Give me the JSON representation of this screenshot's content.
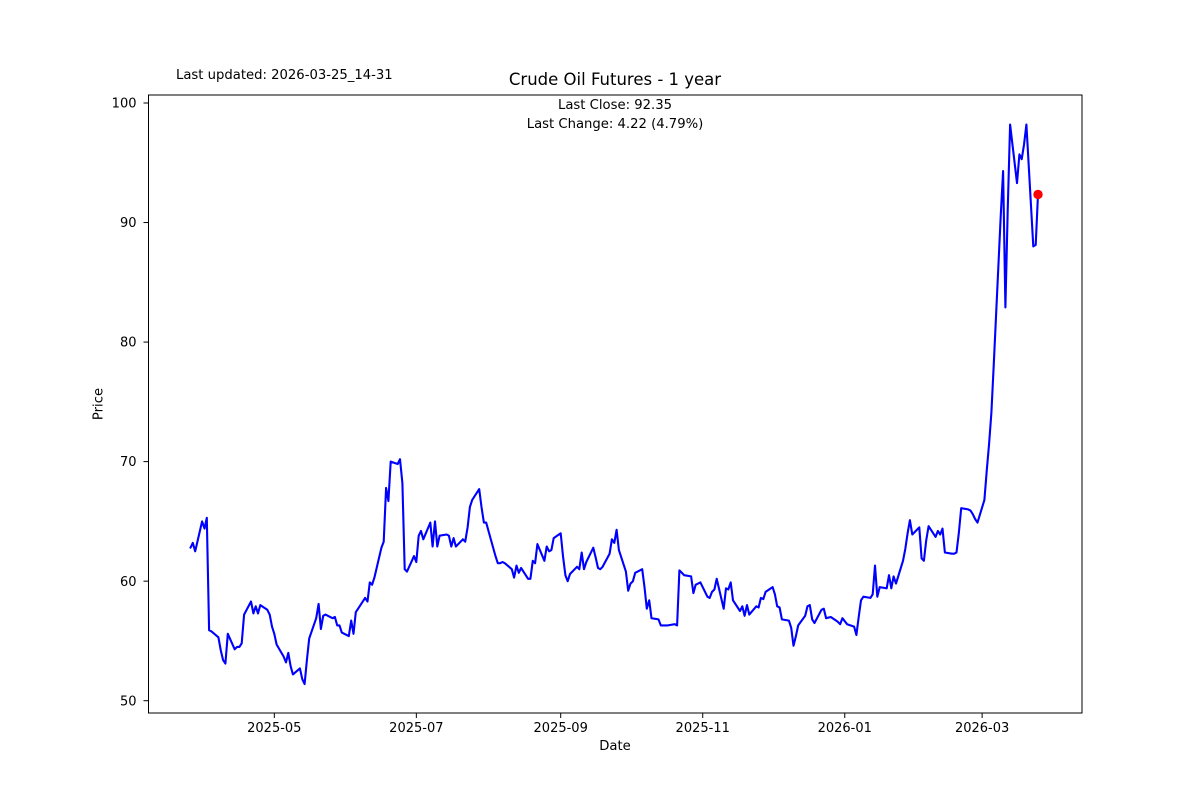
{
  "figure": {
    "last_updated_text": "Last updated: 2026-03-25_14-31",
    "annotation_line1": "Last Close: 92.35",
    "annotation_line2": "Last Change: 4.22 (4.79%)",
    "stats": {
      "last_close": 92.35,
      "last_change": 4.22,
      "last_change_pct": 4.79
    },
    "colors": {
      "line": "#0000ff",
      "marker": "#ff0000",
      "axes": "#000000",
      "background": "#ffffff"
    }
  },
  "chart_data": {
    "type": "line",
    "title": "Crude Oil Futures - 1 year",
    "xlabel": "Date",
    "ylabel": "Price",
    "grid": false,
    "legend_position": "none",
    "x_range": [
      "2025-03-26",
      "2026-03-25"
    ],
    "y_axis": {
      "ticks": [
        50,
        60,
        70,
        80,
        90,
        100
      ],
      "range": [
        48.9,
        100.7
      ]
    },
    "x_axis": {
      "ticks": [
        {
          "label": "2025-05",
          "date": "2025-05-01"
        },
        {
          "label": "2025-07",
          "date": "2025-07-01"
        },
        {
          "label": "2025-09",
          "date": "2025-09-01"
        },
        {
          "label": "2025-11",
          "date": "2025-11-01"
        },
        {
          "label": "2026-01",
          "date": "2026-01-01"
        },
        {
          "label": "2026-03",
          "date": "2026-03-01"
        }
      ]
    },
    "end_marker": {
      "date": "2026-03-25",
      "value": 92.35,
      "color": "#ff0000",
      "shape": "circle"
    },
    "series": [
      {
        "name": "price",
        "color": "#0000ff",
        "line_width": 2,
        "dates": [
          "2025-03-26",
          "2025-03-27",
          "2025-03-28",
          "2025-03-31",
          "2025-04-01",
          "2025-04-02",
          "2025-04-03",
          "2025-04-04",
          "2025-04-07",
          "2025-04-08",
          "2025-04-09",
          "2025-04-10",
          "2025-04-11",
          "2025-04-14",
          "2025-04-15",
          "2025-04-16",
          "2025-04-17",
          "2025-04-18",
          "2025-04-21",
          "2025-04-22",
          "2025-04-23",
          "2025-04-24",
          "2025-04-25",
          "2025-04-28",
          "2025-04-29",
          "2025-04-30",
          "2025-05-01",
          "2025-05-02",
          "2025-05-05",
          "2025-05-06",
          "2025-05-07",
          "2025-05-08",
          "2025-05-09",
          "2025-05-12",
          "2025-05-13",
          "2025-05-14",
          "2025-05-15",
          "2025-05-16",
          "2025-05-19",
          "2025-05-20",
          "2025-05-21",
          "2025-05-22",
          "2025-05-23",
          "2025-05-26",
          "2025-05-27",
          "2025-05-28",
          "2025-05-29",
          "2025-05-30",
          "2025-06-02",
          "2025-06-03",
          "2025-06-04",
          "2025-06-05",
          "2025-06-06",
          "2025-06-09",
          "2025-06-10",
          "2025-06-11",
          "2025-06-12",
          "2025-06-13",
          "2025-06-16",
          "2025-06-17",
          "2025-06-18",
          "2025-06-19",
          "2025-06-20",
          "2025-06-23",
          "2025-06-24",
          "2025-06-25",
          "2025-06-26",
          "2025-06-27",
          "2025-06-30",
          "2025-07-01",
          "2025-07-02",
          "2025-07-03",
          "2025-07-04",
          "2025-07-07",
          "2025-07-08",
          "2025-07-09",
          "2025-07-10",
          "2025-07-11",
          "2025-07-14",
          "2025-07-15",
          "2025-07-16",
          "2025-07-17",
          "2025-07-18",
          "2025-07-21",
          "2025-07-22",
          "2025-07-23",
          "2025-07-24",
          "2025-07-25",
          "2025-07-28",
          "2025-07-29",
          "2025-07-30",
          "2025-07-31",
          "2025-08-01",
          "2025-08-04",
          "2025-08-05",
          "2025-08-06",
          "2025-08-07",
          "2025-08-08",
          "2025-08-11",
          "2025-08-12",
          "2025-08-13",
          "2025-08-14",
          "2025-08-15",
          "2025-08-18",
          "2025-08-19",
          "2025-08-20",
          "2025-08-21",
          "2025-08-22",
          "2025-08-25",
          "2025-08-26",
          "2025-08-27",
          "2025-08-28",
          "2025-08-29",
          "2025-09-01",
          "2025-09-02",
          "2025-09-03",
          "2025-09-04",
          "2025-09-05",
          "2025-09-08",
          "2025-09-09",
          "2025-09-10",
          "2025-09-11",
          "2025-09-12",
          "2025-09-15",
          "2025-09-16",
          "2025-09-17",
          "2025-09-18",
          "2025-09-19",
          "2025-09-22",
          "2025-09-23",
          "2025-09-24",
          "2025-09-25",
          "2025-09-26",
          "2025-09-29",
          "2025-09-30",
          "2025-10-01",
          "2025-10-02",
          "2025-10-03",
          "2025-10-06",
          "2025-10-07",
          "2025-10-08",
          "2025-10-09",
          "2025-10-10",
          "2025-10-13",
          "2025-10-14",
          "2025-10-15",
          "2025-10-16",
          "2025-10-17",
          "2025-10-20",
          "2025-10-21",
          "2025-10-22",
          "2025-10-23",
          "2025-10-24",
          "2025-10-27",
          "2025-10-28",
          "2025-10-29",
          "2025-10-30",
          "2025-10-31",
          "2025-11-03",
          "2025-11-04",
          "2025-11-05",
          "2025-11-06",
          "2025-11-07",
          "2025-11-10",
          "2025-11-11",
          "2025-11-12",
          "2025-11-13",
          "2025-11-14",
          "2025-11-17",
          "2025-11-18",
          "2025-11-19",
          "2025-11-20",
          "2025-11-21",
          "2025-11-24",
          "2025-11-25",
          "2025-11-26",
          "2025-11-27",
          "2025-11-28",
          "2025-12-01",
          "2025-12-02",
          "2025-12-03",
          "2025-12-04",
          "2025-12-05",
          "2025-12-08",
          "2025-12-09",
          "2025-12-10",
          "2025-12-11",
          "2025-12-12",
          "2025-12-15",
          "2025-12-16",
          "2025-12-17",
          "2025-12-18",
          "2025-12-19",
          "2025-12-22",
          "2025-12-23",
          "2025-12-24",
          "2025-12-26",
          "2025-12-29",
          "2025-12-30",
          "2025-12-31",
          "2026-01-02",
          "2026-01-05",
          "2026-01-06",
          "2026-01-07",
          "2026-01-08",
          "2026-01-09",
          "2026-01-12",
          "2026-01-13",
          "2026-01-14",
          "2026-01-15",
          "2026-01-16",
          "2026-01-19",
          "2026-01-20",
          "2026-01-21",
          "2026-01-22",
          "2026-01-23",
          "2026-01-26",
          "2026-01-27",
          "2026-01-28",
          "2026-01-29",
          "2026-01-30",
          "2026-02-02",
          "2026-02-03",
          "2026-02-04",
          "2026-02-05",
          "2026-02-06",
          "2026-02-09",
          "2026-02-10",
          "2026-02-11",
          "2026-02-12",
          "2026-02-13",
          "2026-02-16",
          "2026-02-17",
          "2026-02-18",
          "2026-02-19",
          "2026-02-20",
          "2026-02-23",
          "2026-02-24",
          "2026-02-25",
          "2026-02-26",
          "2026-02-27",
          "2026-03-02",
          "2026-03-03",
          "2026-03-04",
          "2026-03-05",
          "2026-03-06",
          "2026-03-09",
          "2026-03-10",
          "2026-03-11",
          "2026-03-12",
          "2026-03-13",
          "2026-03-16",
          "2026-03-17",
          "2026-03-18",
          "2026-03-19",
          "2026-03-20",
          "2026-03-23",
          "2026-03-24",
          "2026-03-25"
        ],
        "values": [
          62.8,
          63.2,
          62.5,
          65.0,
          64.4,
          65.3,
          55.9,
          55.8,
          55.3,
          54.2,
          53.4,
          53.1,
          55.6,
          54.3,
          54.5,
          54.5,
          54.8,
          57.2,
          58.3,
          57.3,
          57.9,
          57.3,
          58.0,
          57.6,
          57.2,
          56.2,
          55.6,
          54.7,
          53.7,
          53.2,
          54.0,
          52.9,
          52.2,
          52.7,
          51.8,
          51.4,
          53.4,
          55.2,
          56.9,
          58.1,
          56.0,
          57.1,
          57.2,
          56.9,
          57.0,
          56.3,
          56.3,
          55.7,
          55.4,
          56.7,
          55.6,
          57.4,
          57.7,
          58.6,
          58.3,
          59.9,
          59.7,
          60.3,
          62.8,
          63.3,
          67.8,
          66.7,
          70.0,
          69.8,
          70.2,
          68.2,
          61.0,
          60.8,
          62.1,
          61.6,
          63.8,
          64.2,
          63.5,
          64.9,
          62.9,
          65.0,
          62.9,
          63.8,
          63.9,
          63.8,
          62.9,
          63.6,
          62.9,
          63.5,
          63.3,
          64.5,
          66.2,
          66.8,
          67.7,
          66.2,
          64.9,
          64.9,
          64.2,
          62.1,
          61.5,
          61.5,
          61.6,
          61.5,
          61.0,
          60.3,
          61.3,
          60.7,
          61.1,
          60.2,
          60.2,
          61.7,
          61.5,
          63.1,
          61.7,
          62.9,
          62.5,
          62.6,
          63.6,
          64.0,
          62.1,
          60.5,
          60.0,
          60.6,
          61.2,
          61.0,
          62.4,
          61.0,
          61.6,
          62.8,
          62.0,
          61.1,
          61.0,
          61.2,
          62.3,
          63.5,
          63.2,
          64.3,
          62.6,
          60.8,
          59.2,
          59.8,
          60.0,
          60.7,
          61.0,
          59.5,
          57.7,
          58.4,
          56.9,
          56.8,
          56.3,
          56.3,
          56.3,
          56.3,
          56.4,
          56.3,
          60.9,
          60.7,
          60.5,
          60.4,
          59.0,
          59.7,
          59.8,
          59.9,
          58.7,
          58.6,
          59.1,
          59.3,
          60.2,
          57.7,
          59.4,
          59.3,
          59.9,
          58.4,
          57.5,
          57.9,
          57.1,
          58.0,
          57.2,
          57.9,
          57.8,
          58.6,
          58.5,
          59.1,
          59.5,
          58.9,
          57.9,
          57.8,
          56.8,
          56.7,
          56.1,
          54.6,
          55.4,
          56.3,
          57.1,
          57.9,
          58.0,
          56.8,
          56.5,
          57.6,
          57.7,
          56.9,
          57.0,
          56.6,
          56.4,
          56.9,
          56.4,
          56.2,
          55.5,
          57.0,
          58.4,
          58.7,
          58.6,
          58.9,
          61.3,
          58.7,
          59.5,
          59.4,
          60.5,
          59.4,
          60.4,
          59.8,
          61.7,
          62.7,
          64.0,
          65.1,
          63.9,
          64.5,
          61.9,
          61.7,
          63.4,
          64.6,
          63.7,
          64.2,
          63.9,
          64.4,
          62.4,
          62.3,
          62.3,
          62.4,
          64.0,
          66.1,
          66.0,
          65.9,
          65.6,
          65.2,
          64.9,
          66.8,
          69.3,
          71.5,
          74.1,
          78.2,
          90.5,
          94.3,
          82.9,
          91.0,
          98.2,
          93.3,
          95.7,
          95.3,
          96.5,
          98.2,
          88.0,
          88.13,
          92.35
        ]
      }
    ]
  }
}
